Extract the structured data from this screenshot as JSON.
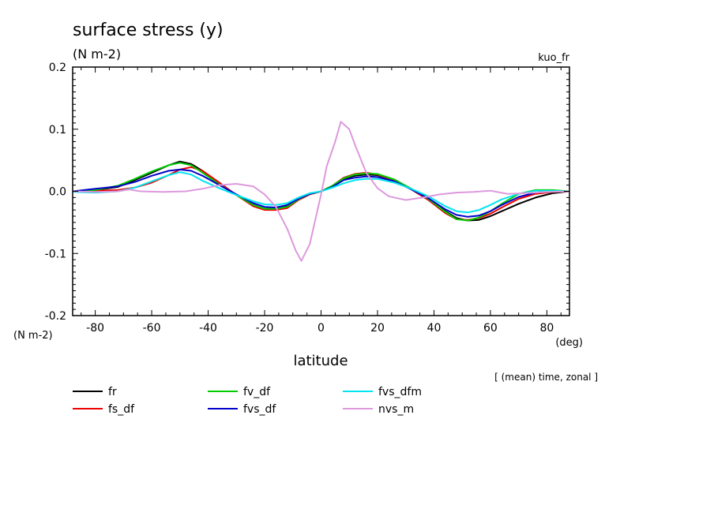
{
  "chart_data": {
    "type": "line",
    "title": "surface stress (y)",
    "units": "(N m-2)",
    "run_label": "kuo_fr",
    "y_unit_label": "(N m-2)",
    "x_unit_label": "(deg)",
    "xlabel": "latitude",
    "note": "[ (mean) time, zonal ]",
    "xlim": [
      -88,
      88
    ],
    "ylim": [
      -0.2,
      0.2
    ],
    "x_ticks": [
      -80,
      -60,
      -40,
      -20,
      0,
      20,
      40,
      60,
      80
    ],
    "y_ticks": [
      -0.2,
      -0.1,
      0.0,
      0.1,
      0.2
    ],
    "y_tick_labels": [
      "-0.2",
      "-0.1",
      "0.0",
      "0.1",
      "0.2"
    ],
    "grid": false,
    "legend_position": "bottom",
    "series": [
      {
        "name": "fr",
        "color": "#000000",
        "x": [
          -88,
          -80,
          -72,
          -66,
          -60,
          -54,
          -50,
          -46,
          -42,
          -36,
          -30,
          -24,
          -20,
          -16,
          -12,
          -8,
          -4,
          0,
          4,
          8,
          12,
          16,
          20,
          26,
          32,
          38,
          44,
          48,
          52,
          56,
          60,
          64,
          70,
          76,
          82,
          88
        ],
        "y": [
          0,
          0.002,
          0.007,
          0.018,
          0.03,
          0.042,
          0.048,
          0.044,
          0.033,
          0.012,
          -0.006,
          -0.022,
          -0.028,
          -0.028,
          -0.024,
          -0.012,
          -0.004,
          0,
          0.008,
          0.02,
          0.025,
          0.027,
          0.026,
          0.018,
          0.004,
          -0.012,
          -0.032,
          -0.043,
          -0.047,
          -0.046,
          -0.04,
          -0.032,
          -0.02,
          -0.01,
          -0.003,
          0
        ]
      },
      {
        "name": "fs_df",
        "color": "#ee0000",
        "x": [
          -88,
          -80,
          -72,
          -66,
          -60,
          -54,
          -50,
          -46,
          -42,
          -36,
          -30,
          -24,
          -20,
          -16,
          -12,
          -8,
          -4,
          0,
          4,
          8,
          12,
          16,
          20,
          26,
          32,
          38,
          44,
          48,
          52,
          56,
          60,
          64,
          70,
          76,
          82,
          88
        ],
        "y": [
          0,
          0.001,
          0.002,
          0.006,
          0.014,
          0.026,
          0.035,
          0.039,
          0.033,
          0.014,
          -0.006,
          -0.024,
          -0.03,
          -0.03,
          -0.027,
          -0.014,
          -0.005,
          0,
          0.009,
          0.022,
          0.028,
          0.03,
          0.027,
          0.018,
          0.003,
          -0.014,
          -0.035,
          -0.045,
          -0.046,
          -0.043,
          -0.036,
          -0.026,
          -0.012,
          -0.004,
          -0.001,
          0
        ]
      },
      {
        "name": "fv_df",
        "color": "#00cc00",
        "x": [
          -88,
          -80,
          -72,
          -66,
          -60,
          -54,
          -50,
          -46,
          -42,
          -36,
          -30,
          -24,
          -20,
          -16,
          -12,
          -8,
          -4,
          0,
          4,
          8,
          12,
          16,
          20,
          26,
          32,
          38,
          44,
          48,
          52,
          56,
          60,
          64,
          70,
          76,
          82,
          88
        ],
        "y": [
          0,
          0.002,
          0.009,
          0.02,
          0.032,
          0.042,
          0.046,
          0.042,
          0.03,
          0.011,
          -0.006,
          -0.022,
          -0.028,
          -0.028,
          -0.025,
          -0.013,
          -0.004,
          0,
          0.009,
          0.021,
          0.027,
          0.029,
          0.028,
          0.019,
          0.004,
          -0.012,
          -0.033,
          -0.045,
          -0.047,
          -0.042,
          -0.032,
          -0.02,
          -0.004,
          0.002,
          0.002,
          0
        ]
      },
      {
        "name": "fvs_df",
        "color": "#0000cc",
        "x": [
          -88,
          -80,
          -72,
          -66,
          -60,
          -54,
          -50,
          -46,
          -42,
          -36,
          -30,
          -24,
          -20,
          -16,
          -12,
          -8,
          -4,
          0,
          4,
          8,
          12,
          16,
          20,
          26,
          32,
          38,
          44,
          48,
          52,
          56,
          60,
          64,
          70,
          76,
          82,
          88
        ],
        "y": [
          0,
          0.004,
          0.008,
          0.015,
          0.025,
          0.033,
          0.035,
          0.033,
          0.025,
          0.01,
          -0.005,
          -0.019,
          -0.025,
          -0.026,
          -0.022,
          -0.012,
          -0.004,
          0,
          0.007,
          0.018,
          0.022,
          0.024,
          0.023,
          0.016,
          0.003,
          -0.011,
          -0.029,
          -0.038,
          -0.041,
          -0.039,
          -0.032,
          -0.022,
          -0.009,
          -0.002,
          0,
          0
        ]
      },
      {
        "name": "fvs_dfm",
        "color": "#00e5ee",
        "x": [
          -88,
          -80,
          -72,
          -66,
          -60,
          -54,
          -50,
          -46,
          -42,
          -36,
          -30,
          -24,
          -20,
          -16,
          -12,
          -8,
          -4,
          0,
          4,
          8,
          12,
          16,
          20,
          26,
          32,
          38,
          44,
          48,
          52,
          56,
          60,
          64,
          70,
          76,
          82,
          88
        ],
        "y": [
          -0.001,
          -0.002,
          0,
          0.006,
          0.016,
          0.026,
          0.031,
          0.027,
          0.017,
          0.005,
          -0.006,
          -0.016,
          -0.021,
          -0.022,
          -0.019,
          -0.01,
          -0.003,
          0,
          0.006,
          0.013,
          0.018,
          0.02,
          0.02,
          0.014,
          0.004,
          -0.008,
          -0.024,
          -0.032,
          -0.034,
          -0.03,
          -0.022,
          -0.013,
          -0.004,
          0.001,
          0.001,
          0
        ]
      },
      {
        "name": "nvs_m",
        "color": "#dd99dd",
        "x": [
          -88,
          -80,
          -72,
          -68,
          -64,
          -56,
          -48,
          -42,
          -36,
          -30,
          -24,
          -20,
          -16,
          -12,
          -9,
          -7,
          -4,
          0,
          2,
          5,
          7,
          10,
          12,
          16,
          20,
          24,
          30,
          36,
          42,
          48,
          54,
          60,
          66,
          72,
          80,
          88
        ],
        "y": [
          0,
          -0.001,
          0,
          0.003,
          0,
          -0.001,
          0,
          0.004,
          0.01,
          0.012,
          0.008,
          -0.005,
          -0.025,
          -0.06,
          -0.095,
          -0.112,
          -0.085,
          -0.005,
          0.04,
          0.08,
          0.112,
          0.1,
          0.075,
          0.03,
          0.005,
          -0.008,
          -0.014,
          -0.01,
          -0.005,
          -0.002,
          -0.001,
          0.001,
          -0.004,
          -0.003,
          -0.001,
          0
        ]
      }
    ]
  }
}
